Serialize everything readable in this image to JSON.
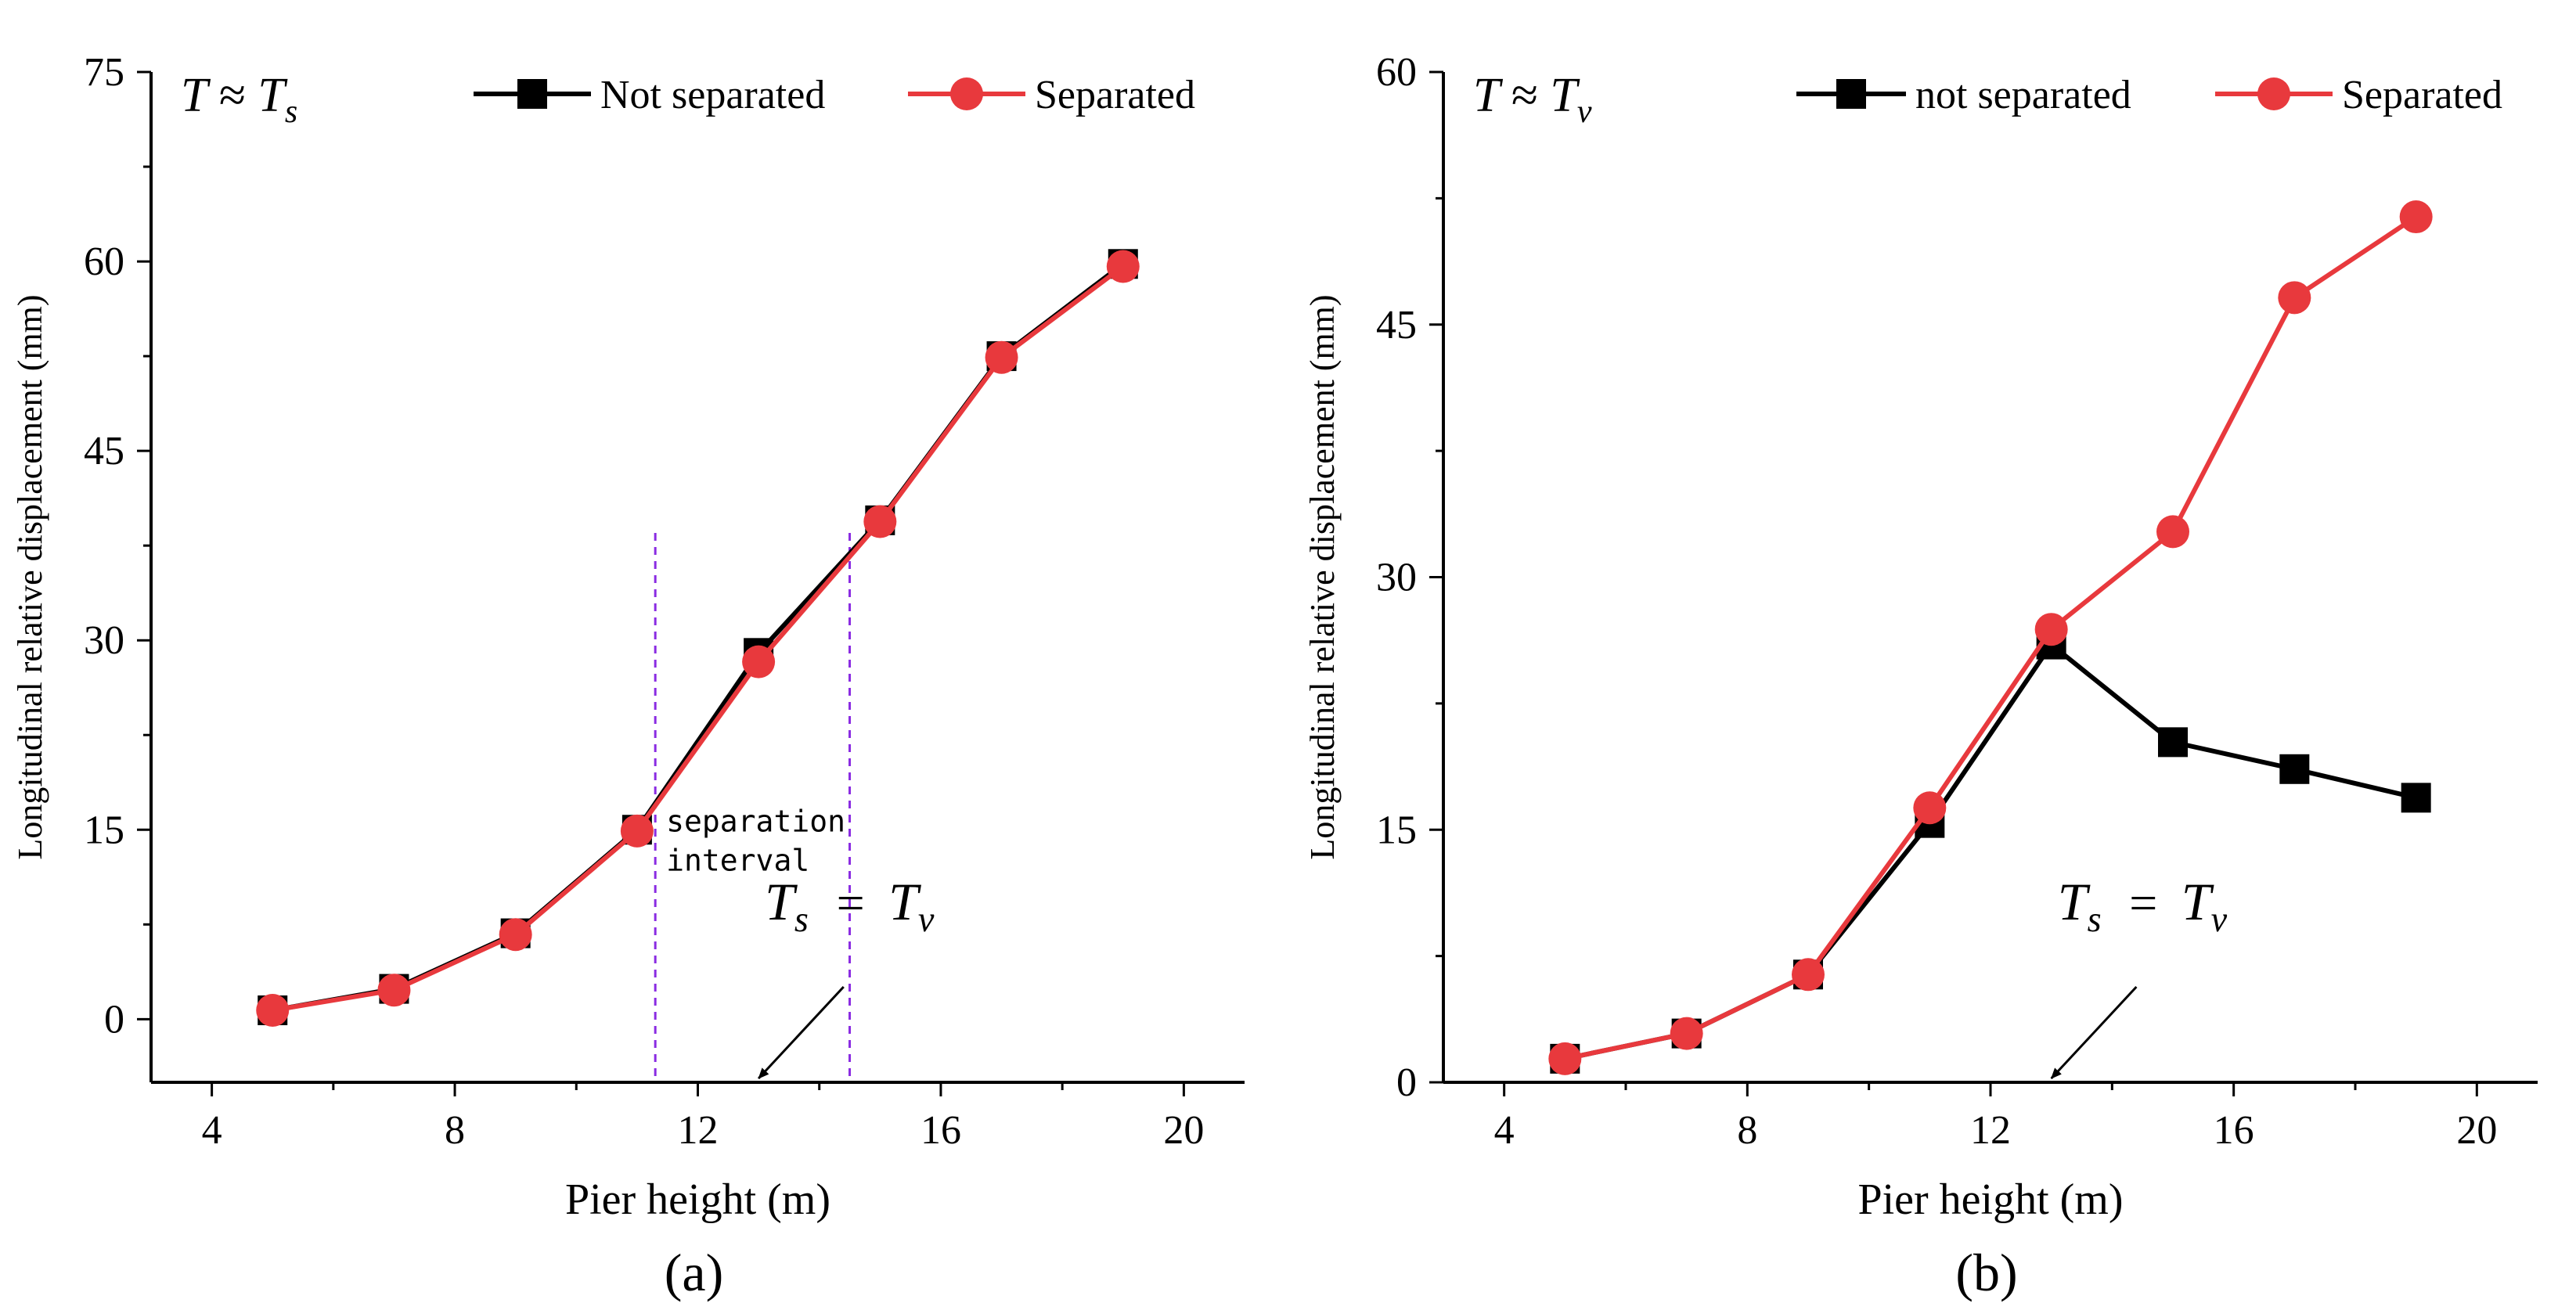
{
  "chart_data": [
    {
      "type": "line",
      "panel_label": "(a)",
      "title_math": {
        "T": "T",
        "approx": "≈",
        "base": "T",
        "sub": "s"
      },
      "xlabel": "Pier height (m)",
      "ylabel": "Longitudinal relative displacement (mm)",
      "xlim": [
        3,
        21
      ],
      "ylim": [
        -5,
        75
      ],
      "xticks": [
        4,
        8,
        12,
        16,
        20
      ],
      "yticks": [
        0,
        15,
        30,
        45,
        60,
        75
      ],
      "legend_position": "top-right",
      "series": [
        {
          "name": "Not separated",
          "color": "#000000",
          "marker": "square",
          "x": [
            5,
            7,
            9,
            11,
            13,
            15,
            17,
            19
          ],
          "y": [
            0.7,
            2.4,
            6.8,
            15.0,
            29.0,
            39.5,
            52.5,
            59.8
          ]
        },
        {
          "name": "Separated",
          "color": "#E8393D",
          "marker": "circle",
          "x": [
            5,
            7,
            9,
            11,
            13,
            15,
            17,
            19
          ],
          "y": [
            0.7,
            2.3,
            6.7,
            14.9,
            28.3,
            39.4,
            52.4,
            59.6
          ]
        }
      ],
      "vlines": [
        11.3,
        14.5
      ],
      "vline_color": "#8A2BE2",
      "separation_label": [
        "separation",
        "interval"
      ],
      "annotation": {
        "left": "T",
        "left_sub": "s",
        "eq": "=",
        "right": "T",
        "right_sub": "v"
      }
    },
    {
      "type": "line",
      "panel_label": "(b)",
      "title_math": {
        "T": "T",
        "approx": "≈",
        "base": "T",
        "sub": "v"
      },
      "xlabel": "Pier height (m)",
      "ylabel": "Longitudinal relative displacement (mm)",
      "xlim": [
        3,
        21
      ],
      "ylim": [
        0,
        60
      ],
      "xticks": [
        4,
        8,
        12,
        16,
        20
      ],
      "yticks": [
        0,
        15,
        30,
        45,
        60
      ],
      "legend_position": "top-right",
      "series": [
        {
          "name": "not separated",
          "color": "#000000",
          "marker": "square",
          "x": [
            5,
            7,
            9,
            11,
            13,
            15,
            17,
            19
          ],
          "y": [
            1.4,
            2.9,
            6.4,
            15.4,
            26.0,
            20.2,
            18.6,
            16.9
          ]
        },
        {
          "name": "Separated",
          "color": "#E8393D",
          "marker": "circle",
          "x": [
            5,
            7,
            9,
            11,
            13,
            15,
            17,
            19
          ],
          "y": [
            1.4,
            2.9,
            6.4,
            16.3,
            26.9,
            32.7,
            46.6,
            51.4
          ]
        }
      ],
      "annotation": {
        "left": "T",
        "left_sub": "s",
        "eq": "=",
        "right": "T",
        "right_sub": "v"
      }
    }
  ]
}
